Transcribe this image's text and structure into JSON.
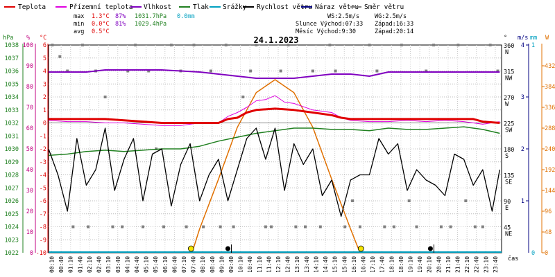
{
  "chart_data": {
    "type": "line",
    "title": "24.1.2023",
    "legend": {
      "placement": "top",
      "items": [
        {
          "name": "Teplota",
          "color": "#e00000"
        },
        {
          "name": "Přízemní teplota",
          "color": "#e000e0"
        },
        {
          "name": "Vlhkost",
          "color": "#8000c0"
        },
        {
          "name": "Tlak",
          "color": "#208020"
        },
        {
          "name": "Srážky",
          "color": "#00a0c0"
        },
        {
          "name": "Rychlost větru",
          "color": "#000000"
        },
        {
          "name": "Náraz větru",
          "color": "#000080"
        },
        {
          "name": "Směr větru",
          "color": "#808080"
        }
      ]
    },
    "stats": {
      "rows": [
        {
          "label": "max",
          "temp": "1.3°C",
          "hum": "87%",
          "press": "1031.7hPa",
          "rain": "0.0mm"
        },
        {
          "label": "min",
          "temp": "0.0°C",
          "hum": "81%",
          "press": "1029.4hPa",
          "rain": ""
        },
        {
          "label": "avg",
          "temp": "0.5°C",
          "hum": "",
          "press": "",
          "rain": ""
        }
      ],
      "ws": "WS:2.5m/s",
      "wg": "WG:2.5m/s",
      "sun": "Slunce Východ:07:33",
      "sunset": "Západ:16:33",
      "moon": "Měsíc  Východ:9:30",
      "moonset": "Západ:20:14"
    },
    "axes": {
      "hpa": {
        "label": "hPa",
        "ticks": [
          "1038",
          "1037",
          "1036",
          "1035",
          "1034",
          "1033",
          "1032",
          "1031",
          "1030",
          "1029",
          "1028",
          "1027",
          "1026",
          "1025",
          "1024",
          "1023",
          "1022"
        ],
        "range": [
          1022,
          1038
        ]
      },
      "pct": {
        "label": "%",
        "ticks": [
          "100",
          "90",
          "80",
          "70",
          "60",
          "50",
          "40",
          "30",
          "20",
          "10",
          "0"
        ],
        "range": [
          0,
          100
        ]
      },
      "celsius": {
        "label": "°C",
        "ticks": [
          "6",
          "5",
          "4",
          "3",
          "2",
          "1",
          "0",
          "-1",
          "-2",
          "-3",
          "-4",
          "-5",
          "-6",
          "-7",
          "-8",
          "-9",
          "-10"
        ],
        "range": [
          -10,
          6
        ]
      },
      "deg": {
        "label": "°",
        "ticks": [
          "360",
          "315",
          "270",
          "225",
          "180",
          "135",
          "90",
          "45"
        ],
        "dirs": [
          "N",
          "NW",
          "W",
          "SW",
          "S",
          "SE",
          "E",
          "NE"
        ]
      },
      "ms": {
        "label": "m/s",
        "ticks": [
          "1",
          "2",
          "3",
          "4"
        ]
      },
      "mm": {
        "label": "mm",
        "ticks": [
          "0",
          "1"
        ]
      },
      "w": {
        "label": "W",
        "ticks": [
          "432",
          "384",
          "336",
          "288",
          "240",
          "192",
          "144",
          "96",
          "48",
          "0"
        ],
        "range": [
          0,
          480
        ]
      },
      "time": {
        "label": "čas",
        "ticks": [
          "00:10",
          "00:40",
          "01:10",
          "01:40",
          "02:10",
          "02:40",
          "03:10",
          "03:40",
          "04:10",
          "04:40",
          "05:10",
          "05:40",
          "06:10",
          "06:40",
          "07:10",
          "07:40",
          "08:10",
          "08:40",
          "09:10",
          "09:40",
          "10:10",
          "10:40",
          "11:10",
          "11:40",
          "12:10",
          "12:40",
          "13:10",
          "13:40",
          "14:10",
          "14:40",
          "15:10",
          "15:40",
          "16:10",
          "16:40",
          "17:10",
          "17:40",
          "18:10",
          "18:40",
          "19:10",
          "19:40",
          "20:10",
          "20:40",
          "21:10",
          "21:40",
          "22:10",
          "22:40",
          "23:10",
          "23:40"
        ]
      }
    },
    "markers": {
      "sunrise_hour": 7.55,
      "sunset_hour": 16.55,
      "moonrise_hour": 9.5,
      "moonset_hour": 20.23
    },
    "series": {
      "temperature": {
        "name": "Teplota",
        "unit": "°C",
        "x": [
          0,
          1,
          2,
          3,
          4,
          5,
          6,
          7,
          8,
          9,
          9.5,
          10,
          10.5,
          11,
          12,
          13,
          14,
          15,
          15.5,
          16,
          17,
          18,
          19,
          20,
          21,
          22,
          22.5,
          23,
          23.9
        ],
        "y": [
          0.3,
          0.3,
          0.3,
          0.3,
          0.2,
          0.1,
          0.0,
          0.0,
          0.0,
          0.0,
          0.3,
          0.4,
          0.8,
          1.0,
          1.1,
          1.0,
          0.8,
          0.6,
          0.4,
          0.3,
          0.3,
          0.3,
          0.3,
          0.3,
          0.3,
          0.3,
          0.3,
          0.1,
          0.0
        ]
      },
      "ground_temperature": {
        "name": "Přízemní teplota",
        "unit": "°C",
        "x": [
          0,
          1,
          2,
          3,
          4,
          5,
          6,
          7,
          8,
          9,
          9.5,
          10,
          10.5,
          11,
          11.5,
          12,
          12.5,
          13,
          14,
          15,
          15.5,
          16,
          17,
          18,
          19,
          20,
          21,
          22,
          22.5,
          23,
          23.9
        ],
        "y": [
          0.2,
          0.1,
          0.1,
          0.0,
          0.0,
          -0.1,
          -0.2,
          -0.2,
          0.0,
          0.0,
          0.5,
          0.8,
          1.2,
          1.7,
          1.8,
          2.1,
          1.6,
          1.5,
          1.0,
          0.8,
          0.4,
          0.2,
          0.1,
          0.1,
          0.2,
          0.1,
          0.2,
          0.1,
          0.0,
          -0.1,
          0.1
        ]
      },
      "humidity": {
        "name": "Vlhkost",
        "unit": "%",
        "x": [
          0,
          2,
          3,
          5,
          6,
          8,
          9,
          10,
          11,
          12,
          13,
          14,
          15,
          16,
          17,
          18,
          19,
          20,
          21,
          22,
          23,
          23.9
        ],
        "y": [
          87,
          87,
          88,
          88,
          88,
          87,
          86,
          85,
          84,
          84,
          84,
          85,
          86,
          86,
          85,
          87,
          87,
          87,
          87,
          87,
          87,
          87
        ]
      },
      "pressure": {
        "name": "Tlak",
        "unit": "hPa",
        "x": [
          0,
          1,
          2,
          3,
          4,
          5,
          6,
          7,
          8,
          9,
          10,
          11,
          12,
          13,
          14,
          15,
          16,
          17,
          18,
          19,
          20,
          21,
          22,
          23,
          23.9
        ],
        "y": [
          1029.5,
          1029.6,
          1029.8,
          1029.9,
          1029.8,
          1029.9,
          1030.0,
          1030.0,
          1030.2,
          1030.6,
          1030.9,
          1031.2,
          1031.4,
          1031.6,
          1031.6,
          1031.5,
          1031.5,
          1031.4,
          1031.6,
          1031.5,
          1031.5,
          1031.6,
          1031.7,
          1031.5,
          1031.2
        ]
      },
      "wind_speed": {
        "name": "Rychlost větru",
        "unit": "m/s",
        "x": [
          0,
          0.5,
          1,
          1.5,
          2,
          2.5,
          3,
          3.5,
          4,
          4.5,
          5,
          5.5,
          6,
          6.5,
          7,
          7.5,
          8,
          8.5,
          9,
          9.5,
          10,
          10.5,
          11,
          11.5,
          12,
          12.5,
          13,
          13.5,
          14,
          14.5,
          15,
          15.5,
          16,
          16.5,
          17,
          17.5,
          18,
          18.5,
          19,
          19.5,
          20,
          20.5,
          21,
          21.5,
          22,
          22.5,
          23,
          23.5,
          23.9
        ],
        "y": [
          2.0,
          1.5,
          0.8,
          2.2,
          1.3,
          1.6,
          2.4,
          1.2,
          1.8,
          2.2,
          1.0,
          1.9,
          2.0,
          0.9,
          1.7,
          2.1,
          1.0,
          1.5,
          1.8,
          1.0,
          1.6,
          2.2,
          2.4,
          1.8,
          2.4,
          1.2,
          2.1,
          1.7,
          2.0,
          1.1,
          1.4,
          0.7,
          1.4,
          1.5,
          1.5,
          2.2,
          1.9,
          2.1,
          1.2,
          1.6,
          1.4,
          1.3,
          1.1,
          1.9,
          1.8,
          1.3,
          1.6,
          0.8,
          1.6
        ]
      },
      "solar": {
        "name": "Solar",
        "unit": "W",
        "x": [
          7.6,
          8,
          9,
          10,
          11,
          12,
          13,
          14,
          15,
          16,
          16.5
        ],
        "y": [
          0,
          55,
          170,
          290,
          370,
          400,
          370,
          290,
          170,
          55,
          0
        ]
      },
      "wind_direction": {
        "name": "Směr větru",
        "unit": "°",
        "x": [
          0.2,
          0.6,
          1.0,
          1.3,
          1.8,
          2.1,
          2.5,
          3.0,
          3.4,
          3.9,
          4.2,
          4.6,
          5.0,
          5.3,
          5.7,
          6.1,
          6.5,
          7.0,
          7.3,
          7.7,
          8.2,
          8.6,
          9.1,
          9.4,
          9.8,
          10.3,
          10.7,
          11.0,
          11.5,
          11.8,
          12.3,
          12.7,
          13.1,
          13.6,
          14.0,
          14.4,
          14.9,
          15.2,
          15.7,
          16.1,
          16.5,
          17.0,
          17.4,
          17.8,
          18.3,
          18.7,
          19.1,
          19.5,
          20.0,
          20.4,
          20.8,
          21.3,
          21.7,
          22.1,
          22.6,
          23.0,
          23.4,
          23.8
        ],
        "y": [
          360,
          340,
          315,
          45,
          360,
          45,
          315,
          270,
          45,
          45,
          315,
          360,
          45,
          315,
          180,
          45,
          360,
          315,
          45,
          360,
          45,
          315,
          45,
          360,
          45,
          270,
          315,
          360,
          45,
          45,
          315,
          360,
          45,
          45,
          315,
          45,
          360,
          315,
          45,
          90,
          45,
          360,
          315,
          45,
          45,
          360,
          90,
          45,
          315,
          360,
          45,
          45,
          360,
          90,
          45,
          45,
          360,
          315
        ]
      }
    }
  }
}
